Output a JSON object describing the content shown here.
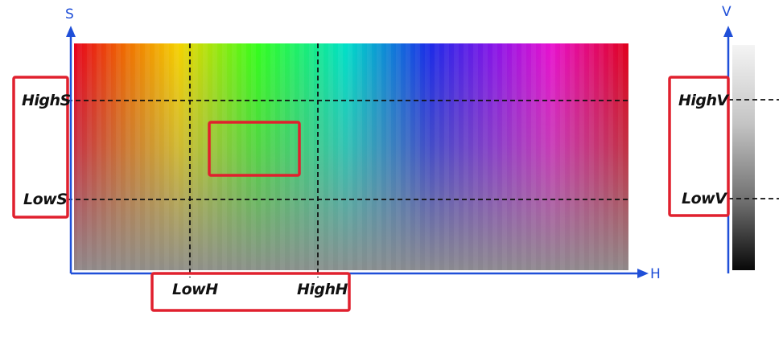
{
  "axes": {
    "h": "H",
    "s": "S",
    "v": "V"
  },
  "thresholds": {
    "low_h": "LowH",
    "high_h": "HighH",
    "low_s": "LowS",
    "high_s": "HighS",
    "low_v": "LowV",
    "high_v": "HighV"
  },
  "colors": {
    "axis": "#1f4fd8",
    "highlight_box": "#e0202e",
    "threshold_line": "#111111",
    "hue_stops": [
      "#e8001c",
      "#f06a00",
      "#f5d300",
      "#33ff1a",
      "#00e0c8",
      "#1a2be8",
      "#8a13e8",
      "#e810d0",
      "#e0001a"
    ]
  }
}
